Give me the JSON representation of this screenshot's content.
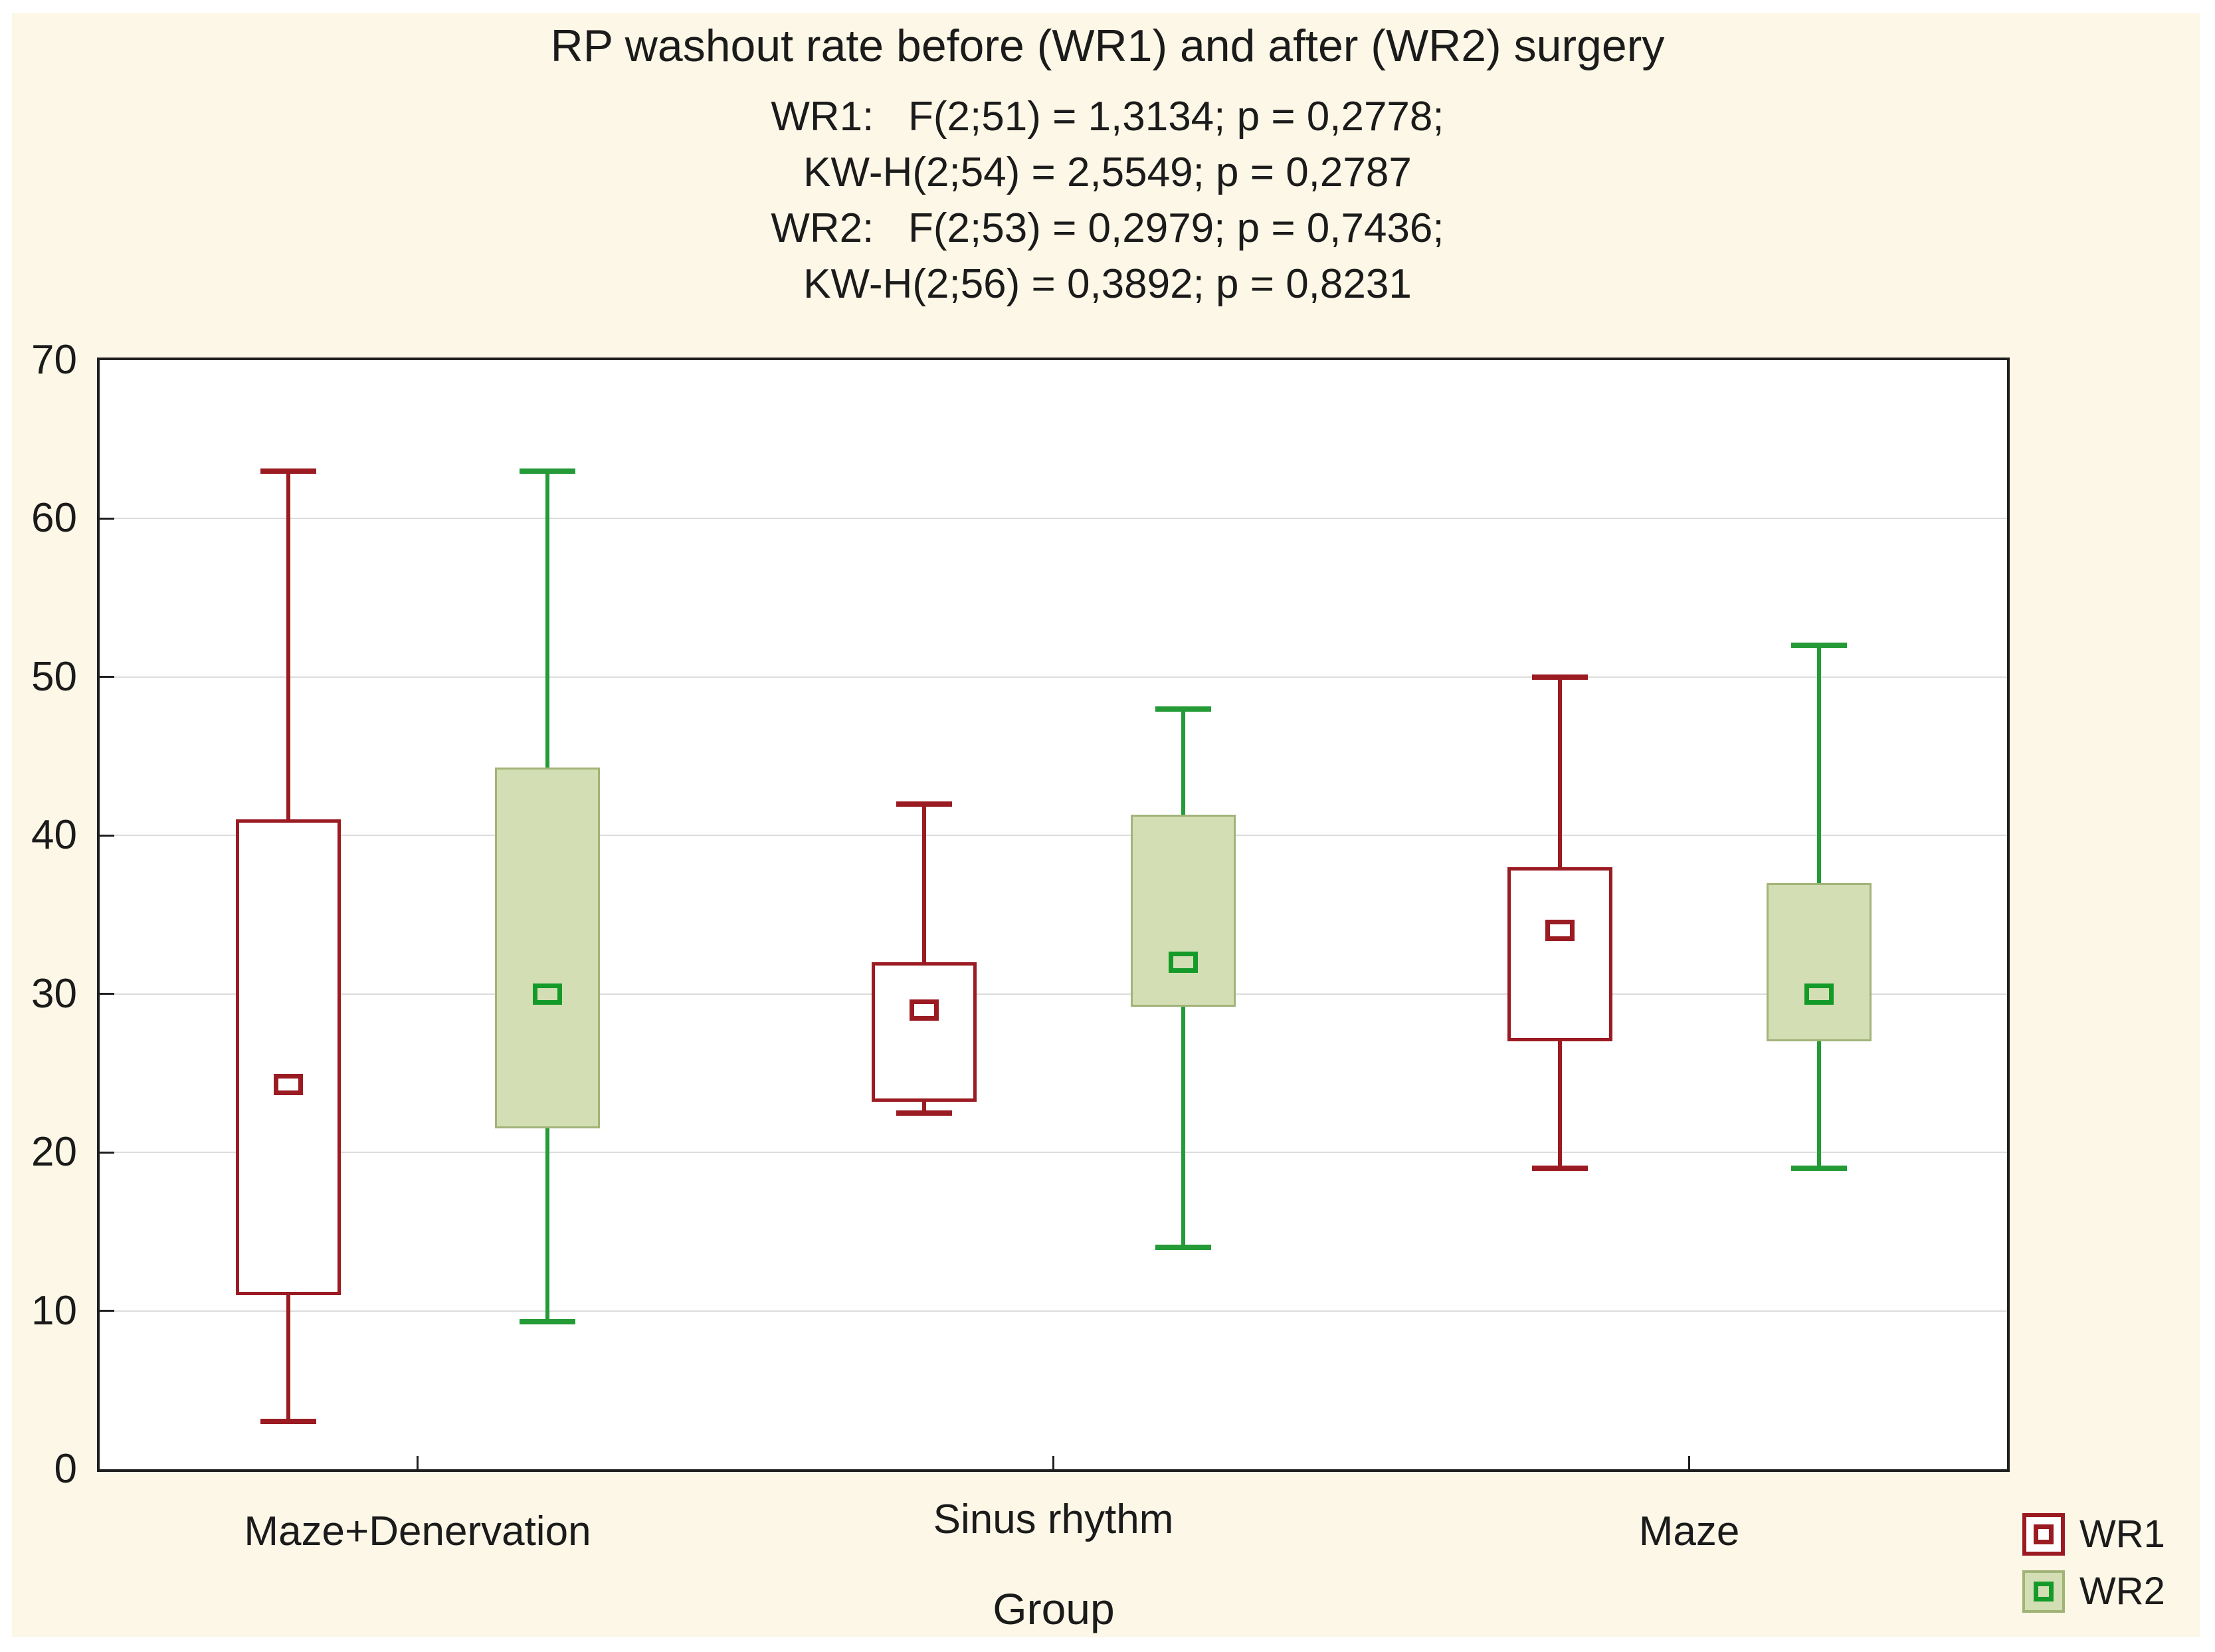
{
  "chart_data": {
    "type": "grouped_boxplot",
    "title": "RP washout rate before (WR1) and after (WR2) surgery",
    "stats_lines": [
      "WR1:   F(2;51) = 1,3134; p = 0,2778;",
      "KW-H(2;54) = 2,5549; p = 0,2787",
      "WR2:   F(2;53) = 0,2979; p = 0,7436;",
      "KW-H(2;56) = 0,3892; p = 0,8231"
    ],
    "xlabel": "Group",
    "categories": [
      "Maze+Denervation",
      "Sinus rhythm",
      "Maze"
    ],
    "ylim": [
      0,
      70
    ],
    "yticks": [
      0,
      10,
      20,
      30,
      40,
      50,
      60,
      70
    ],
    "grid": "horizontal",
    "legend_position": "bottom-right",
    "marker_meaning": "mean (small square); box = quartiles; whiskers = min/max",
    "series": [
      {
        "name": "WR1",
        "stroke_color": "#9b1b22",
        "box_fill": "#ffffff",
        "box_border_color": "#9b1b22",
        "boxes": [
          {
            "category": "Maze+Denervation",
            "min": 3,
            "q1": 11,
            "mean": 24.3,
            "q3": 41,
            "max": 63
          },
          {
            "category": "Sinus rhythm",
            "min": 22.5,
            "q1": 23.2,
            "mean": 29,
            "q3": 32,
            "max": 42
          },
          {
            "category": "Maze",
            "min": 19,
            "q1": 27,
            "mean": 34,
            "q3": 38,
            "max": 50
          }
        ]
      },
      {
        "name": "WR2",
        "stroke_color": "#249b36",
        "marker_color": "#149a28",
        "box_fill": "#d4deb4",
        "box_border_color": "#a2b378",
        "boxes": [
          {
            "category": "Maze+Denervation",
            "min": 9.3,
            "q1": 21.5,
            "mean": 30,
            "q3": 44.3,
            "max": 63
          },
          {
            "category": "Sinus rhythm",
            "min": 14,
            "q1": 29.2,
            "mean": 32,
            "q3": 41.3,
            "max": 48
          },
          {
            "category": "Maze",
            "min": 19,
            "q1": 27,
            "mean": 30,
            "q3": 37,
            "max": 52
          }
        ]
      }
    ]
  }
}
